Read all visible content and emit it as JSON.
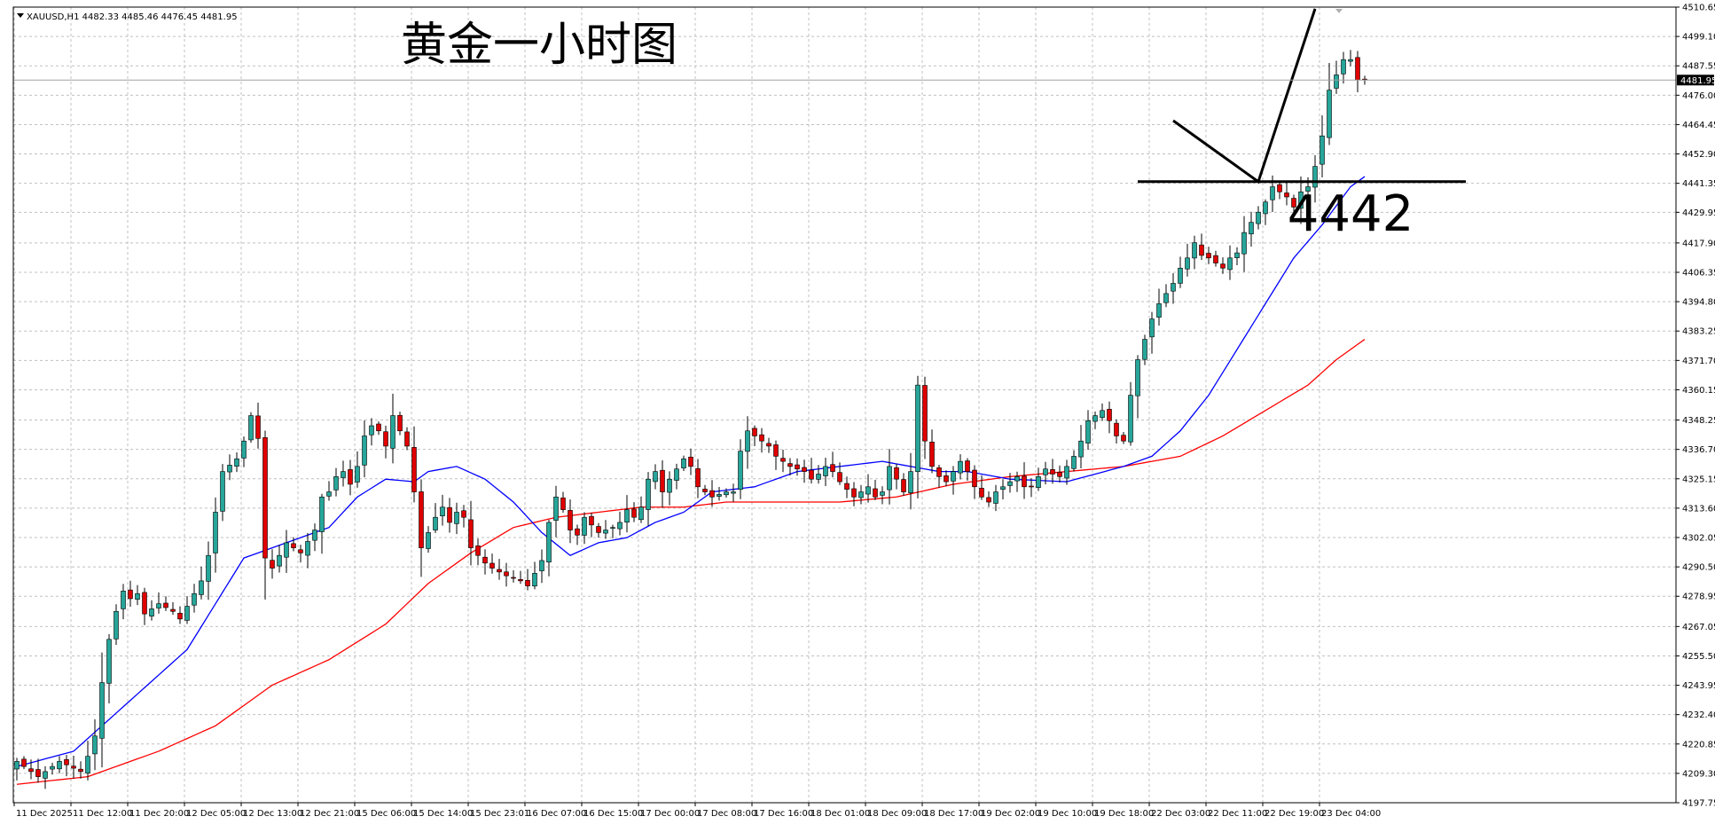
{
  "header": {
    "symbol_line": "XAUUSD,H1  4482.33 4485.46 4476.45 4481.95",
    "annotation_title": "黄金一小时图",
    "annotation_level": "4442"
  },
  "colors": {
    "background": "#ffffff",
    "grid": "#c0c0c0",
    "bull_candle": "#26a69a",
    "bear_candle": "#e00000",
    "wick": "#000000",
    "ma_fast": "#0000ff",
    "ma_slow": "#ff0000",
    "annotation": "#000000",
    "current_price_bg": "#000000"
  },
  "chart_data": {
    "type": "candlestick",
    "symbol": "XAUUSD",
    "timeframe": "H1",
    "ohlc_current": {
      "open": 4482.33,
      "high": 4485.46,
      "low": 4476.45,
      "close": 4481.95
    },
    "current_price": 4481.95,
    "current_price_label": "4481.95",
    "ylim": [
      4197.75,
      4510.65
    ],
    "y_ticks": [
      "4510.65",
      "4499.10",
      "4487.55",
      "4476.00",
      "4464.45",
      "4452.90",
      "4441.35",
      "4429.95",
      "4417.90",
      "4406.35",
      "4394.80",
      "4383.25",
      "4371.70",
      "4360.15",
      "4348.25",
      "4336.70",
      "4325.15",
      "4313.60",
      "4302.05",
      "4290.50",
      "4278.95",
      "4267.05",
      "4255.50",
      "4243.95",
      "4232.40",
      "4220.85",
      "4209.30",
      "4197.75"
    ],
    "x_ticks": [
      "11 Dec 2025",
      "11 Dec 12:00",
      "11 Dec 20:00",
      "12 Dec 05:00",
      "12 Dec 13:00",
      "12 Dec 21:00",
      "15 Dec 06:00",
      "15 Dec 14:00",
      "15 Dec 23:01",
      "16 Dec 07:00",
      "16 Dec 15:00",
      "17 Dec 00:00",
      "17 Dec 08:00",
      "17 Dec 16:00",
      "18 Dec 01:00",
      "18 Dec 09:00",
      "18 Dec 17:00",
      "19 Dec 02:00",
      "19 Dec 10:00",
      "19 Dec 18:00",
      "22 Dec 03:00",
      "22 Dec 11:00",
      "22 Dec 19:00",
      "23 Dec 04:00"
    ],
    "bars_per_tick": 8,
    "close_anchors": [
      [
        0,
        4214
      ],
      [
        3,
        4208
      ],
      [
        6,
        4214
      ],
      [
        9,
        4210
      ],
      [
        10,
        4216
      ],
      [
        11,
        4224
      ],
      [
        12,
        4245
      ],
      [
        13,
        4262
      ],
      [
        14,
        4273
      ],
      [
        15,
        4281
      ],
      [
        16,
        4278
      ],
      [
        17,
        4280
      ],
      [
        18,
        4272
      ],
      [
        20,
        4276
      ],
      [
        22,
        4273
      ],
      [
        23,
        4270
      ],
      [
        26,
        4285
      ],
      [
        27,
        4295
      ],
      [
        28,
        4312
      ],
      [
        29,
        4328
      ],
      [
        31,
        4333
      ],
      [
        32,
        4340
      ],
      [
        33,
        4350
      ],
      [
        34,
        4341
      ],
      [
        35,
        4294
      ],
      [
        36,
        4290
      ],
      [
        38,
        4300
      ],
      [
        40,
        4296
      ],
      [
        42,
        4305
      ],
      [
        43,
        4318
      ],
      [
        44,
        4320
      ],
      [
        45,
        4326
      ],
      [
        46,
        4328
      ],
      [
        47,
        4323
      ],
      [
        48,
        4330
      ],
      [
        49,
        4342
      ],
      [
        50,
        4346
      ],
      [
        51,
        4344
      ],
      [
        52,
        4338
      ],
      [
        53,
        4350
      ],
      [
        54,
        4344
      ],
      [
        55,
        4338
      ],
      [
        56,
        4320
      ],
      [
        57,
        4298
      ],
      [
        59,
        4310
      ],
      [
        60,
        4314
      ],
      [
        61,
        4308
      ],
      [
        62,
        4312
      ],
      [
        63,
        4310
      ],
      [
        64,
        4298
      ],
      [
        66,
        4292
      ],
      [
        67,
        4290
      ],
      [
        69,
        4287
      ],
      [
        71,
        4285
      ],
      [
        72,
        4283
      ],
      [
        74,
        4293
      ],
      [
        75,
        4308
      ],
      [
        76,
        4318
      ],
      [
        77,
        4313
      ],
      [
        78,
        4305
      ],
      [
        79,
        4303
      ],
      [
        80,
        4310
      ],
      [
        81,
        4307
      ],
      [
        82,
        4304
      ],
      [
        84,
        4306
      ],
      [
        85,
        4308
      ],
      [
        86,
        4313
      ],
      [
        87,
        4310
      ],
      [
        88,
        4314
      ],
      [
        89,
        4325
      ],
      [
        90,
        4328
      ],
      [
        91,
        4320
      ],
      [
        92,
        4325
      ],
      [
        93,
        4329
      ],
      [
        94,
        4333
      ],
      [
        95,
        4330
      ],
      [
        96,
        4322
      ],
      [
        97,
        4320
      ],
      [
        98,
        4318
      ],
      [
        99,
        4319
      ],
      [
        100,
        4320
      ],
      [
        101,
        4320
      ],
      [
        102,
        4336
      ],
      [
        103,
        4344
      ],
      [
        104,
        4342
      ],
      [
        105,
        4340
      ],
      [
        106,
        4338
      ],
      [
        107,
        4334
      ],
      [
        108,
        4332
      ],
      [
        109,
        4330
      ],
      [
        111,
        4328
      ],
      [
        112,
        4325
      ],
      [
        113,
        4327
      ],
      [
        114,
        4330
      ],
      [
        115,
        4328
      ],
      [
        116,
        4324
      ],
      [
        117,
        4321
      ],
      [
        118,
        4318
      ],
      [
        119,
        4320
      ],
      [
        120,
        4322
      ],
      [
        121,
        4318
      ],
      [
        122,
        4320
      ],
      [
        123,
        4330
      ],
      [
        124,
        4325
      ],
      [
        125,
        4320
      ],
      [
        126,
        4328
      ],
      [
        127,
        4362
      ],
      [
        128,
        4340
      ],
      [
        129,
        4330
      ],
      [
        130,
        4326
      ],
      [
        131,
        4324
      ],
      [
        132,
        4328
      ],
      [
        133,
        4332
      ],
      [
        134,
        4328
      ],
      [
        135,
        4322
      ],
      [
        136,
        4318
      ],
      [
        137,
        4316
      ],
      [
        138,
        4320
      ],
      [
        139,
        4322
      ],
      [
        140,
        4324
      ],
      [
        141,
        4326
      ],
      [
        142,
        4322
      ],
      [
        143,
        4322
      ],
      [
        144,
        4326
      ],
      [
        145,
        4329
      ],
      [
        146,
        4327
      ],
      [
        147,
        4326
      ],
      [
        148,
        4330
      ],
      [
        149,
        4334
      ],
      [
        150,
        4340
      ],
      [
        151,
        4348
      ],
      [
        152,
        4350
      ],
      [
        153,
        4352
      ],
      [
        154,
        4348
      ],
      [
        155,
        4342
      ],
      [
        156,
        4340
      ],
      [
        157,
        4358
      ],
      [
        158,
        4372
      ],
      [
        159,
        4380
      ],
      [
        160,
        4388
      ],
      [
        161,
        4394
      ],
      [
        162,
        4398
      ],
      [
        163,
        4402
      ],
      [
        164,
        4408
      ],
      [
        165,
        4412
      ],
      [
        166,
        4418
      ],
      [
        167,
        4413
      ],
      [
        168,
        4412
      ],
      [
        169,
        4410
      ],
      [
        170,
        4408
      ],
      [
        171,
        4412
      ],
      [
        172,
        4414
      ],
      [
        173,
        4422
      ],
      [
        174,
        4426
      ],
      [
        175,
        4430
      ],
      [
        176,
        4434
      ],
      [
        177,
        4440
      ],
      [
        178,
        4438
      ],
      [
        179,
        4436
      ],
      [
        180,
        4432
      ],
      [
        181,
        4438
      ],
      [
        182,
        4440
      ],
      [
        183,
        4448
      ],
      [
        184,
        4460
      ],
      [
        185,
        4478
      ],
      [
        186,
        4484
      ],
      [
        187,
        4490
      ],
      [
        188,
        4490
      ],
      [
        189,
        4482
      ],
      [
        190,
        4481.95
      ]
    ],
    "ma_fast_anchors": [
      [
        0,
        4212
      ],
      [
        8,
        4218
      ],
      [
        16,
        4238
      ],
      [
        24,
        4258
      ],
      [
        28,
        4276
      ],
      [
        32,
        4294
      ],
      [
        36,
        4298
      ],
      [
        40,
        4302
      ],
      [
        44,
        4306
      ],
      [
        48,
        4318
      ],
      [
        52,
        4325
      ],
      [
        56,
        4324
      ],
      [
        58,
        4328
      ],
      [
        62,
        4330
      ],
      [
        66,
        4325
      ],
      [
        70,
        4316
      ],
      [
        74,
        4304
      ],
      [
        78,
        4295
      ],
      [
        82,
        4300
      ],
      [
        86,
        4302
      ],
      [
        90,
        4308
      ],
      [
        94,
        4312
      ],
      [
        98,
        4320
      ],
      [
        104,
        4322
      ],
      [
        110,
        4328
      ],
      [
        116,
        4330
      ],
      [
        122,
        4332
      ],
      [
        126,
        4330
      ],
      [
        130,
        4328
      ],
      [
        134,
        4328
      ],
      [
        140,
        4325
      ],
      [
        148,
        4324
      ],
      [
        152,
        4327
      ],
      [
        156,
        4330
      ],
      [
        160,
        4334
      ],
      [
        164,
        4344
      ],
      [
        168,
        4358
      ],
      [
        172,
        4376
      ],
      [
        176,
        4394
      ],
      [
        180,
        4412
      ],
      [
        184,
        4425
      ],
      [
        188,
        4440
      ],
      [
        190,
        4444
      ]
    ],
    "ma_slow_anchors": [
      [
        0,
        4205
      ],
      [
        10,
        4208
      ],
      [
        20,
        4218
      ],
      [
        28,
        4228
      ],
      [
        36,
        4244
      ],
      [
        44,
        4254
      ],
      [
        52,
        4268
      ],
      [
        58,
        4284
      ],
      [
        64,
        4296
      ],
      [
        70,
        4306
      ],
      [
        76,
        4310
      ],
      [
        82,
        4312
      ],
      [
        88,
        4314
      ],
      [
        94,
        4314
      ],
      [
        100,
        4316
      ],
      [
        108,
        4316
      ],
      [
        116,
        4316
      ],
      [
        124,
        4318
      ],
      [
        132,
        4323
      ],
      [
        140,
        4326
      ],
      [
        148,
        4328
      ],
      [
        156,
        4330
      ],
      [
        164,
        4334
      ],
      [
        170,
        4342
      ],
      [
        176,
        4352
      ],
      [
        182,
        4362
      ],
      [
        186,
        4372
      ],
      [
        190,
        4380
      ]
    ],
    "annotation_level_value": 4442,
    "annotation_polyline": [
      [
        163,
        4466
      ],
      [
        175,
        4442
      ],
      [
        183,
        4510
      ]
    ],
    "annotation_horizontal": [
      158,
      184
    ]
  }
}
